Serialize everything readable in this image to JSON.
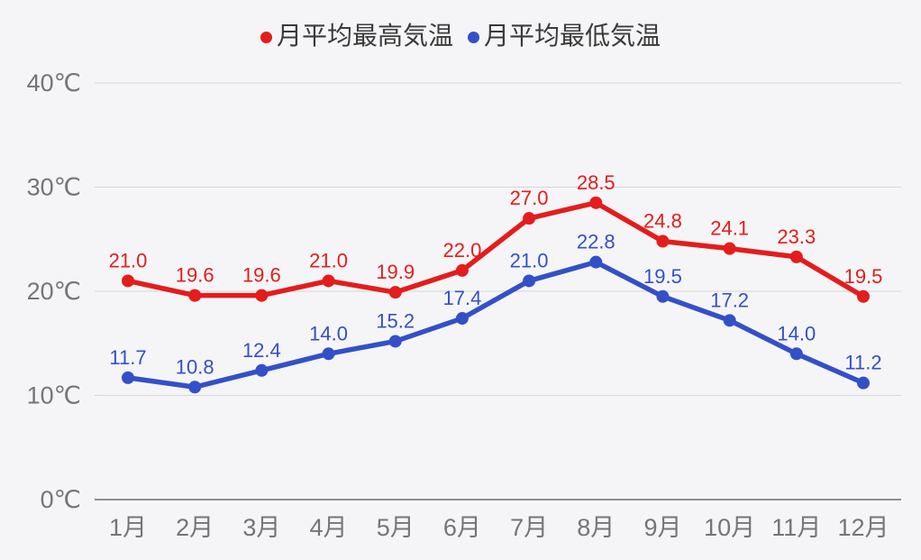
{
  "legend": {
    "items": [
      {
        "label": "月平均最高気温",
        "color": "#e51c1c"
      },
      {
        "label": "月平均最低気温",
        "color": "#3350c8"
      }
    ]
  },
  "colors": {
    "background": "#f5f5f7",
    "grid_line": "#d6d6d9",
    "axis_line": "#8f8f93",
    "axis_text": "#757578",
    "legend_text": "#3a3a3a",
    "series_max": "#e51c1c",
    "series_min": "#3350c8"
  },
  "chart_data": {
    "type": "line",
    "categories": [
      "1月",
      "2月",
      "3月",
      "4月",
      "5月",
      "6月",
      "7月",
      "8月",
      "9月",
      "10月",
      "11月",
      "12月"
    ],
    "series": [
      {
        "name": "月平均最高気温",
        "color": "#e51c1c",
        "values": [
          21.0,
          19.6,
          19.6,
          21.0,
          19.9,
          22.0,
          27.0,
          28.5,
          24.8,
          24.1,
          23.3,
          19.5
        ]
      },
      {
        "name": "月平均最低気温",
        "color": "#3350c8",
        "values": [
          11.7,
          10.8,
          12.4,
          14.0,
          15.2,
          17.4,
          21.0,
          22.8,
          19.5,
          17.2,
          14.0,
          11.2
        ]
      }
    ],
    "yticks": [
      {
        "value": 0,
        "label": "0℃"
      },
      {
        "value": 10,
        "label": "10℃"
      },
      {
        "value": 20,
        "label": "20℃"
      },
      {
        "value": 30,
        "label": "30℃"
      },
      {
        "value": 40,
        "label": "40℃"
      }
    ],
    "ylim": [
      0,
      40
    ],
    "grid": true,
    "legend_position": "top",
    "data_labels": true,
    "xlabel": "",
    "ylabel": "",
    "title": ""
  }
}
